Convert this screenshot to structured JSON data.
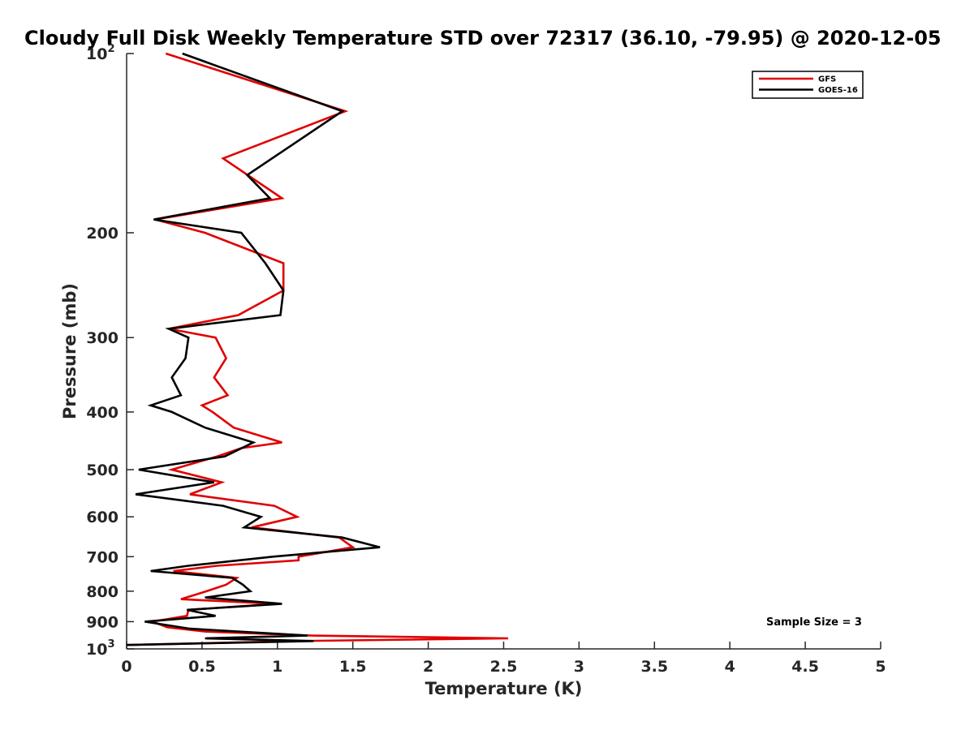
{
  "chart_data": {
    "type": "line",
    "title": "Cloudy Full Disk Weekly Temperature STD over 72317 (36.10, -79.95) @ 2020-12-05",
    "xlabel": "Temperature (K)",
    "ylabel": "Pressure (mb)",
    "xlim": [
      0,
      5
    ],
    "ylim": [
      1000,
      100
    ],
    "yscale": "log",
    "x_ticks": [
      "0",
      "0.5",
      "1",
      "1.5",
      "2",
      "2.5",
      "3",
      "3.5",
      "4",
      "4.5",
      "5"
    ],
    "y_ticks": [
      {
        "value": 100,
        "base": "10",
        "exp": "2"
      },
      {
        "value": 200,
        "label": "200"
      },
      {
        "value": 300,
        "label": "300"
      },
      {
        "value": 400,
        "label": "400"
      },
      {
        "value": 500,
        "label": "500"
      },
      {
        "value": 600,
        "label": "600"
      },
      {
        "value": 700,
        "label": "700"
      },
      {
        "value": 800,
        "label": "800"
      },
      {
        "value": 900,
        "label": "900"
      },
      {
        "value": 1000,
        "base": "10",
        "exp": "3"
      }
    ],
    "grid": false,
    "legend_position": "top-right",
    "annotation": "Sample Size = 3",
    "series": [
      {
        "name": "GFS",
        "color": "#e00000",
        "points": [
          [
            0.26,
            100
          ],
          [
            1.45,
            125
          ],
          [
            0.64,
            150
          ],
          [
            1.03,
            175
          ],
          [
            0.19,
            190
          ],
          [
            0.52,
            200
          ],
          [
            1.04,
            225
          ],
          [
            1.04,
            250
          ],
          [
            0.74,
            275
          ],
          [
            0.28,
            290
          ],
          [
            0.59,
            300
          ],
          [
            0.66,
            325
          ],
          [
            0.58,
            350
          ],
          [
            0.67,
            375
          ],
          [
            0.5,
            390
          ],
          [
            0.57,
            400
          ],
          [
            0.71,
            425
          ],
          [
            1.03,
            450
          ],
          [
            0.76,
            460
          ],
          [
            0.6,
            475
          ],
          [
            0.3,
            500
          ],
          [
            0.63,
            525
          ],
          [
            0.42,
            550
          ],
          [
            0.98,
            575
          ],
          [
            1.13,
            600
          ],
          [
            0.83,
            625
          ],
          [
            1.41,
            650
          ],
          [
            1.5,
            675
          ],
          [
            1.14,
            700
          ],
          [
            1.14,
            710
          ],
          [
            0.6,
            725
          ],
          [
            0.31,
            740
          ],
          [
            0.73,
            760
          ],
          [
            0.66,
            780
          ],
          [
            0.53,
            800
          ],
          [
            0.36,
            825
          ],
          [
            0.99,
            840
          ],
          [
            0.41,
            860
          ],
          [
            0.4,
            880
          ],
          [
            0.17,
            900
          ],
          [
            0.27,
            920
          ],
          [
            0.52,
            935
          ],
          [
            1.23,
            950
          ],
          [
            2.53,
            960
          ],
          [
            1.14,
            970
          ],
          [
            0.0,
            985
          ]
        ]
      },
      {
        "name": "GOES-16",
        "color": "#000000",
        "points": [
          [
            0.37,
            100
          ],
          [
            1.43,
            125
          ],
          [
            0.8,
            160
          ],
          [
            0.95,
            175
          ],
          [
            0.18,
            190
          ],
          [
            0.76,
            200
          ],
          [
            0.92,
            225
          ],
          [
            1.04,
            250
          ],
          [
            1.02,
            275
          ],
          [
            0.28,
            290
          ],
          [
            0.41,
            300
          ],
          [
            0.39,
            325
          ],
          [
            0.3,
            350
          ],
          [
            0.36,
            375
          ],
          [
            0.16,
            390
          ],
          [
            0.3,
            400
          ],
          [
            0.52,
            425
          ],
          [
            0.84,
            450
          ],
          [
            0.65,
            475
          ],
          [
            0.08,
            500
          ],
          [
            0.58,
            525
          ],
          [
            0.06,
            550
          ],
          [
            0.64,
            575
          ],
          [
            0.89,
            600
          ],
          [
            0.78,
            625
          ],
          [
            1.43,
            650
          ],
          [
            1.68,
            675
          ],
          [
            0.97,
            700
          ],
          [
            0.41,
            725
          ],
          [
            0.16,
            740
          ],
          [
            0.7,
            760
          ],
          [
            0.77,
            780
          ],
          [
            0.82,
            800
          ],
          [
            0.52,
            820
          ],
          [
            1.03,
            840
          ],
          [
            0.4,
            860
          ],
          [
            0.59,
            880
          ],
          [
            0.12,
            900
          ],
          [
            0.42,
            925
          ],
          [
            1.2,
            950
          ],
          [
            0.52,
            960
          ],
          [
            1.24,
            970
          ],
          [
            0.0,
            985
          ]
        ]
      }
    ]
  }
}
